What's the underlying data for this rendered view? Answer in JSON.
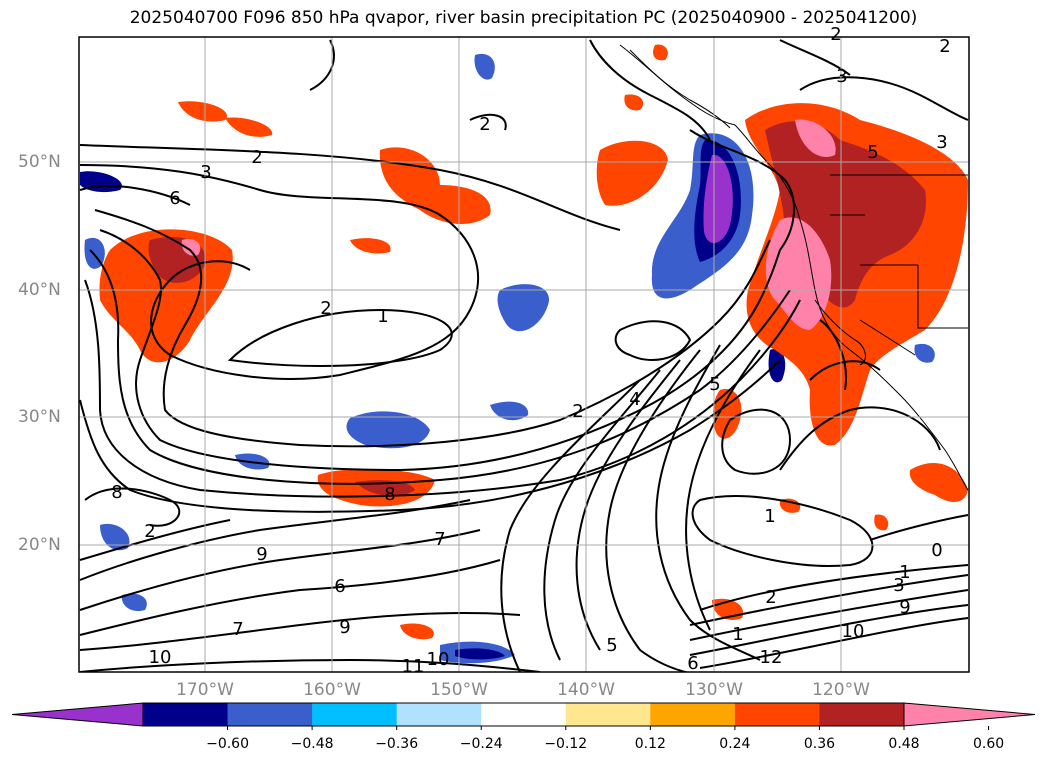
{
  "title": "2025040700 F096 850 hPa qvapor, river basin precipitation PC (2025040900 - 2025041200)",
  "lat_labels": [
    "50°N",
    "40°N",
    "30°N",
    "20°N"
  ],
  "lon_labels": [
    "170°W",
    "160°W",
    "150°W",
    "140°W",
    "130°W",
    "120°W"
  ],
  "colorbar": {
    "colors": [
      "#9932cc",
      "#00008b",
      "#3a5fcd",
      "#00bfff",
      "#b0e2ff",
      "#ffffff",
      "#ffe68f",
      "#ffa500",
      "#ff4500",
      "#b22222",
      "#ff82ab"
    ],
    "tick_labels": [
      "−0.60",
      "−0.48",
      "−0.36",
      "−0.24",
      "−0.12",
      "0.12",
      "0.24",
      "0.36",
      "0.48",
      "0.60"
    ]
  },
  "contour_labels": [
    "2",
    "3",
    "6",
    "2",
    "1",
    "2",
    "1",
    "2",
    "4",
    "5",
    "8",
    "7",
    "9",
    "6",
    "7",
    "9",
    "10",
    "10",
    "11",
    "5",
    "6",
    "8",
    "1",
    "2",
    "1",
    "0",
    "3",
    "9",
    "10",
    "12",
    "5",
    "3",
    "3",
    "2",
    "2",
    "2"
  ]
}
